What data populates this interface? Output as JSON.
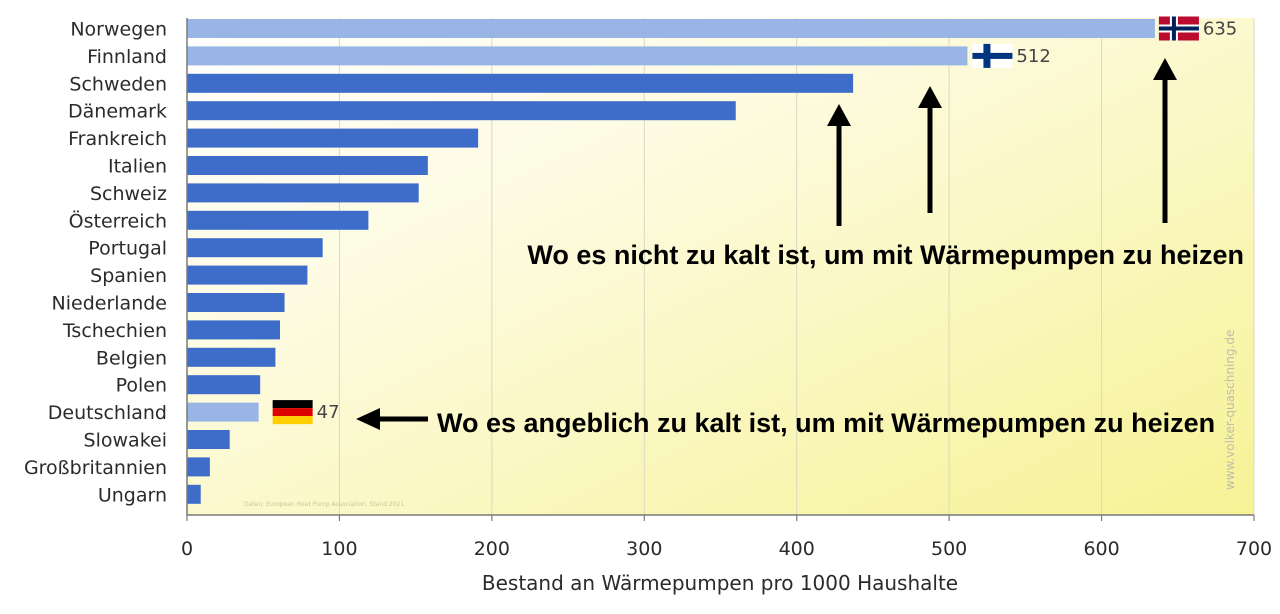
{
  "chart_data": {
    "type": "bar",
    "orientation": "horizontal",
    "categories": [
      "Norwegen",
      "Finnland",
      "Schweden",
      "Dänemark",
      "Frankreich",
      "Italien",
      "Schweiz",
      "Österreich",
      "Portugal",
      "Spanien",
      "Niederlande",
      "Tschechien",
      "Belgien",
      "Polen",
      "Deutschland",
      "Slowakei",
      "Großbritannien",
      "Ungarn"
    ],
    "values": [
      635,
      512,
      437,
      360,
      191,
      158,
      152,
      119,
      89,
      79,
      64,
      61,
      58,
      48,
      47,
      28,
      15,
      9
    ],
    "highlighted": [
      "Norwegen",
      "Finnland",
      "Deutschland"
    ],
    "data_labels": {
      "Norwegen": "635",
      "Finnland": "512",
      "Deutschland": "47"
    },
    "xlabel": "Bestand an Wärmepumpen pro 1000 Haushalte",
    "xlim": [
      0,
      700
    ],
    "xticks": [
      "0",
      "100",
      "200",
      "300",
      "400",
      "500",
      "600",
      "700"
    ],
    "grid": true,
    "watermark": "www.volker-quaschning.de",
    "source_note": "Daten: European Heat Pump Association, Stand 2021",
    "colors": {
      "bar": "#3d6cc9",
      "bar_highlight": "#98b5e5",
      "background_start": "#ffffff",
      "background_end": "#f8f5a0"
    }
  },
  "annotations": {
    "top": "Wo es nicht zu kalt ist, um mit Wärmepumpen zu heizen",
    "bottom": "Wo es angeblich zu kalt ist, um mit Wärmepumpen zu heizen"
  },
  "flags": {
    "Norwegen": "norway-flag-icon",
    "Finnland": "finland-flag-icon",
    "Deutschland": "germany-flag-icon"
  }
}
